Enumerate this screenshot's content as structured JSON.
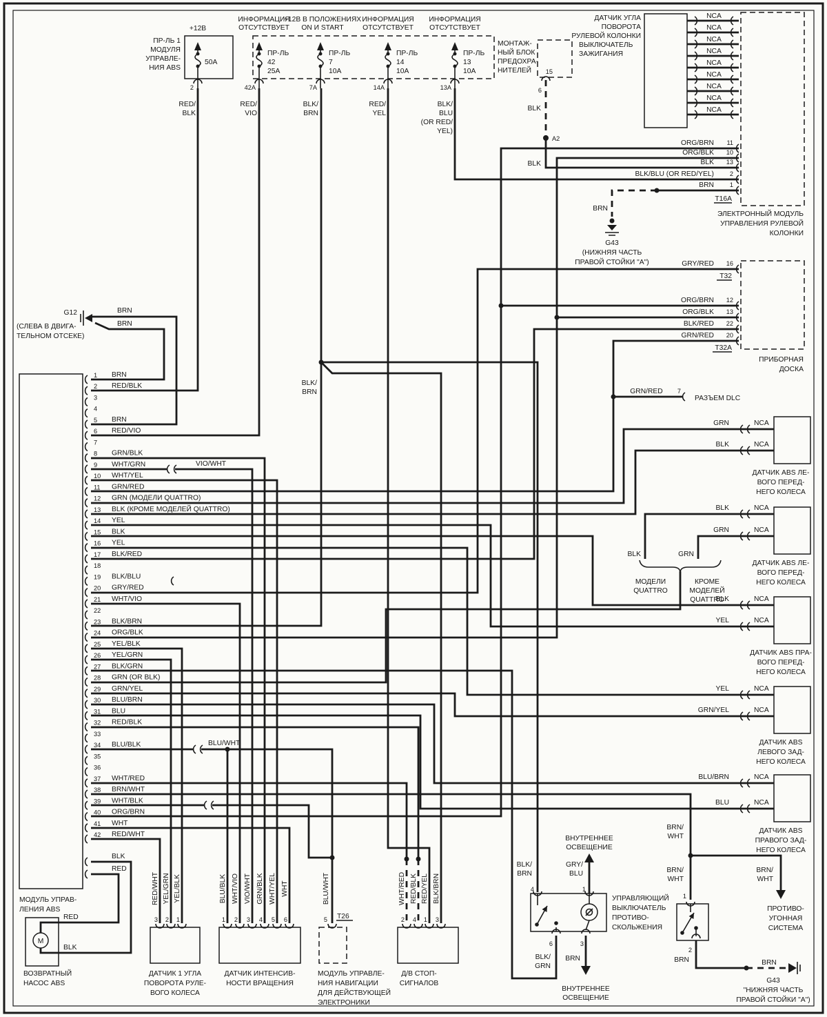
{
  "ink": "#1b1b1b",
  "fuse_panel": {
    "f1": {
      "volt": "+12В",
      "name": [
        "ПР-ЛЬ 1",
        "МОДУЛЯ",
        "УПРАВЛЕ-",
        "НИЯ ABS"
      ],
      "amp": "50A",
      "pin": "2",
      "wire": [
        "RED/",
        "BLK"
      ]
    },
    "block_label": [
      "МОНТАЖ-",
      "НЫЙ БЛОК",
      "ПРЕДОХРА-",
      "НИТЕЛЕЙ"
    ],
    "f42": {
      "hdr": [
        "ИНФОРМАЦИЯ",
        "ОТСУТСТВУЕТ"
      ],
      "name": [
        "ПР-ЛЬ",
        "42",
        "25A"
      ],
      "pin": "42A",
      "wire": [
        "RED/",
        "VIO"
      ]
    },
    "f7": {
      "hdr": [
        "+12В В ПОЛОЖЕНИЯХ",
        "ON И START"
      ],
      "name": [
        "ПР-ЛЬ",
        "7",
        "10A"
      ],
      "pin": "7A",
      "wire": [
        "BLK/",
        "BRN"
      ]
    },
    "f14": {
      "hdr": [
        "ИНФОРМАЦИЯ",
        "ОТСУТСТВУЕТ"
      ],
      "name": [
        "ПР-ЛЬ",
        "14",
        "10A"
      ],
      "pin": "14A",
      "wire": [
        "RED/",
        "YEL"
      ]
    },
    "f13": {
      "hdr": [
        "ИНФОРМАЦИЯ",
        "ОТСУТСТВУЕТ"
      ],
      "name": [
        "ПР-ЛЬ",
        "13",
        "10A"
      ],
      "pin": "13A",
      "wire": [
        "BLK/",
        "BLU",
        "(OR RED/",
        "YEL)"
      ]
    }
  },
  "ignition": {
    "name": [
      "ВЫКЛЮЧАТЕЛЬ",
      "ЗАЖИГАНИЯ"
    ],
    "t15": "15",
    "pin": "6",
    "wire_dashed": "BLK",
    "junction": "A2",
    "wire_solid": "BLK"
  },
  "steering_sensor": {
    "name": [
      "ДАТЧИК УГЛА",
      "ПОВОРОТА",
      "РУЛЕВОЙ КОЛОНКИ"
    ],
    "rows": [
      {
        "t": "NCA"
      },
      {
        "t": "NCA"
      },
      {
        "t": "NCA"
      },
      {
        "t": "NCA"
      },
      {
        "t": "NCA"
      },
      {
        "t": "NCA"
      },
      {
        "t": "NCA"
      },
      {
        "t": "NCA"
      },
      {
        "t": "NCA"
      }
    ]
  },
  "steering_module": {
    "rows": [
      {
        "c": "ORG/BRN",
        "n": "11"
      },
      {
        "c": "ORG/BLK",
        "n": "10"
      },
      {
        "c": "BLK",
        "n": "13"
      },
      {
        "c": "BLK/BLU (OR RED/YEL)",
        "n": "2"
      },
      {
        "c": "BRN",
        "n": "1"
      }
    ],
    "conn": "T16A",
    "name": [
      "ЭЛЕКТРОННЫЙ МОДУЛЬ",
      "УПРАВЛЕНИЯ РУЛЕВОЙ",
      "КОЛОНКИ"
    ]
  },
  "ground_g43_top": {
    "wire": "BRN",
    "name": [
      "G43",
      "(НИЖНЯЯ ЧАСТЬ",
      "ПРАВОЙ СТОЙКИ \"А\")"
    ]
  },
  "instrument": {
    "rows": [
      {
        "c": "GRY/RED",
        "n": "16"
      },
      {
        "c": "ORG/BRN",
        "n": "12"
      },
      {
        "c": "ORG/BLK",
        "n": "13"
      },
      {
        "c": "BLK/RED",
        "n": "22"
      },
      {
        "c": "GRN/RED",
        "n": "20"
      }
    ],
    "t32": "T32",
    "t32a": "T32A",
    "name": [
      "ПРИБОРНАЯ",
      "ДОСКА"
    ]
  },
  "dlc": {
    "wire": "GRN/RED",
    "pin": "7",
    "name": "РАЗЪЕМ DLC"
  },
  "ground_g12": {
    "name": "G12",
    "loc": [
      "(СЛЕВА В ДВИГА-",
      "ТЕЛЬНОМ ОТСЕКЕ)"
    ],
    "w1": "BRN",
    "w2": "BRN"
  },
  "module": {
    "name": [
      "МОДУЛЬ УПРАВ-",
      "ЛЕНИЯ ABS"
    ],
    "pins": [
      {
        "n": "1",
        "label": "BRN"
      },
      {
        "n": "2",
        "label": "RED/BLK"
      },
      {
        "n": "3",
        "label": ""
      },
      {
        "n": "4",
        "label": ""
      },
      {
        "n": "5",
        "label": "BRN"
      },
      {
        "n": "6",
        "label": "RED/VIO"
      },
      {
        "n": "7",
        "label": ""
      },
      {
        "n": "8",
        "label": "GRN/BLK"
      },
      {
        "n": "9",
        "label": "WHT/GRN"
      },
      {
        "n": "10",
        "label": "WHT/YEL"
      },
      {
        "n": "11",
        "label": "GRN/RED"
      },
      {
        "n": "12",
        "label": "GRN   (МОДЕЛИ QUATTRO)"
      },
      {
        "n": "13",
        "label": "BLK   (КРОМЕ МОДЕЛЕЙ QUATTRO)"
      },
      {
        "n": "14",
        "label": "YEL"
      },
      {
        "n": "15",
        "label": "BLK"
      },
      {
        "n": "16",
        "label": "YEL"
      },
      {
        "n": "17",
        "label": "BLK/RED"
      },
      {
        "n": "18",
        "label": ""
      },
      {
        "n": "19",
        "label": "BLK/BLU"
      },
      {
        "n": "20",
        "label": "GRY/RED"
      },
      {
        "n": "21",
        "label": "WHT/VIO"
      },
      {
        "n": "22",
        "label": ""
      },
      {
        "n": "23",
        "label": "BLK/BRN"
      },
      {
        "n": "24",
        "label": "ORG/BLK"
      },
      {
        "n": "25",
        "label": "YEL/BLK"
      },
      {
        "n": "26",
        "label": "YEL/GRN"
      },
      {
        "n": "27",
        "label": "BLK/GRN"
      },
      {
        "n": "28",
        "label": "GRN (OR BLK)"
      },
      {
        "n": "29",
        "label": "GRN/YEL"
      },
      {
        "n": "30",
        "label": "BLU/BRN"
      },
      {
        "n": "31",
        "label": "BLU"
      },
      {
        "n": "32",
        "label": "RED/BLK"
      },
      {
        "n": "33",
        "label": ""
      },
      {
        "n": "34",
        "label": "BLU/BLK"
      },
      {
        "n": "35",
        "label": ""
      },
      {
        "n": "36",
        "label": ""
      },
      {
        "n": "37",
        "label": "WHT/RED"
      },
      {
        "n": "38",
        "label": "BRN/WHT"
      },
      {
        "n": "39",
        "label": "WHT/BLK"
      },
      {
        "n": "40",
        "label": "ORG/BRN"
      },
      {
        "n": "41",
        "label": "WHT"
      },
      {
        "n": "42",
        "label": "RED/WHT"
      }
    ],
    "extra_vio": "VIO/WHT",
    "extra_blu": "BLU/WHT",
    "blk": "BLK",
    "red": "RED",
    "mid_blkbrn": [
      "BLK/",
      "BRN"
    ]
  },
  "pump": {
    "red": "RED",
    "blk": "BLK",
    "motor": "M",
    "name": [
      "ВОЗВРАТНЫЙ",
      "НАСОС ABS"
    ]
  },
  "steer_angle": {
    "pins": [
      "3",
      "2",
      "1"
    ],
    "wires": [
      "RED/WHT",
      "YEL/GRN",
      "YEL/BLK"
    ],
    "name": [
      "ДАТЧИК 1 УГЛА",
      "ПОВОРОТА РУЛЕ-",
      "ВОГО КОЛЕСА"
    ]
  },
  "rotation": {
    "pins": [
      "1",
      "2",
      "3",
      "4",
      "5",
      "6"
    ],
    "wires": [
      "BLU/BLK",
      "WHT/VIO",
      "VIO/WHT",
      "GRN/BLK",
      "WHT/YEL",
      "WHT"
    ],
    "name": [
      "ДАТЧИК ИНТЕНСИВ-",
      "НОСТИ ВРАЩЕНИЯ"
    ]
  },
  "nav": {
    "pin": "5",
    "conn": "T26",
    "wire": "BLU/WHT",
    "name": [
      "МОДУЛЬ УПРАВЛЕ-",
      "НИЯ НАВИГАЦИИ",
      "ДЛЯ ДЕЙСТВУЮЩЕЙ",
      "ЭЛЕКТРОНИКИ"
    ]
  },
  "stop": {
    "pins": [
      "2",
      "4",
      "1",
      "3"
    ],
    "wires": [
      "WHT/RED",
      "RED/BLK",
      "RED/YEL",
      "BLK/BRN"
    ],
    "name": [
      "Д/В СТОП-",
      "СИГНАЛОВ"
    ]
  },
  "traction": {
    "light_top": [
      "ВНУТРЕННЕЕ",
      "ОСВЕЩЕНИЕ"
    ],
    "light_bottom": [
      "ВНУТРЕННЕЕ",
      "ОСВЕЩЕНИЕ"
    ],
    "w4": [
      "BLK/",
      "BRN"
    ],
    "w1": [
      "GRY/",
      "BLU"
    ],
    "w6": [
      "BLK/",
      "GRN"
    ],
    "w3": "BRN",
    "p4": "4",
    "p1": "1",
    "p6": "6",
    "p3": "3",
    "name": [
      "УПРАВЛЯЮЩИЙ",
      "ВЫКЛЮЧАТЕЛЬ",
      "ПРОТИВО-",
      "СКОЛЬЖЕНИЯ"
    ]
  },
  "antitheft": {
    "w_top": [
      "BRN/",
      "WHT"
    ],
    "w_mid": [
      "BRN/",
      "WHT"
    ],
    "w_branch": [
      "BRN/",
      "WHT"
    ],
    "system": [
      "ПРОТИВО-",
      "УГОННАЯ",
      "СИСТЕМА"
    ],
    "p1": "1",
    "p2": "2",
    "wire": "BRN",
    "brn2": "BRN",
    "g43": [
      "G43",
      "\"НИЖНЯЯ ЧАСТЬ",
      "ПРАВОЙ СТОЙКИ \"А\")"
    ]
  },
  "quattro": {
    "blk": "BLK",
    "grn": "GRN",
    "left": [
      "МОДЕЛИ",
      "QUATTRO"
    ],
    "right": [
      "КРОМЕ",
      "МОДЕЛЕЙ",
      "QUATTRO"
    ]
  },
  "abs_sensors": [
    {
      "c1": "GRN",
      "c2": "BLK",
      "nca": "NCA",
      "name": [
        "ДАТЧИК ABS ЛЕ-",
        "ВОГО ПЕРЕД-",
        "НЕГО КОЛЕСА"
      ]
    },
    {
      "c1": "BLK",
      "c2": "GRN",
      "nca": "NCA",
      "name": [
        "ДАТЧИК ABS ЛЕ-",
        "ВОГО ПЕРЕД-",
        "НЕГО КОЛЕСА"
      ]
    },
    {
      "c1": "BLK",
      "c2": "YEL",
      "nca": "NCA",
      "name": [
        "ДАТЧИК ABS ПРА-",
        "ВОГО ПЕРЕД-",
        "НЕГО КОЛЕСА"
      ]
    },
    {
      "c1": "YEL",
      "c2": "GRN/YEL",
      "nca": "NCA",
      "name": [
        "ДАТЧИК ABS",
        "ЛЕВОГО ЗАД-",
        "НЕГО КОЛЕСА"
      ]
    },
    {
      "c1": "BLU/BRN",
      "c2": "BLU",
      "nca": "NCA",
      "name": [
        "ДАТЧИК ABS",
        "ПРАВОГО ЗАД-",
        "НЕГО КОЛЕСА"
      ]
    }
  ]
}
